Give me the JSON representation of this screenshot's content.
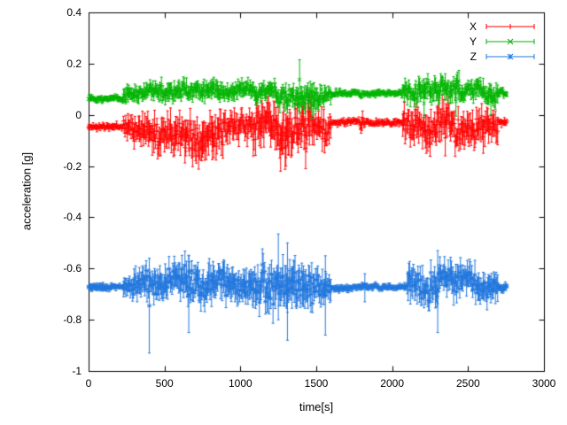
{
  "figure": {
    "background": "#ffffff",
    "border_color": "#000000"
  },
  "chart_data": {
    "type": "scatter",
    "style": "points-with-errorbars",
    "title": "",
    "xlabel": "time[s]",
    "ylabel": "acceleration [g]",
    "xlim": [
      0,
      3000
    ],
    "ylim": [
      -1,
      0.4
    ],
    "xticks": [
      "0",
      "500",
      "1000",
      "1500",
      "2000",
      "2500",
      "3000"
    ],
    "yticks": [
      "-1",
      "-0.8",
      "-0.6",
      "-0.4",
      "-0.2",
      "0",
      "0.2",
      "0.4"
    ],
    "grid": false,
    "legend_position": "top-right-inside",
    "sample_interval_s": 5,
    "t_start": 0,
    "t_end": 2760,
    "series": [
      {
        "name": "X",
        "color": "#ff0000",
        "marker": "plus",
        "seed": 11,
        "baseline": -0.05,
        "segments": [
          [
            0,
            230,
            -0.048,
            0.012
          ],
          [
            230,
            300,
            -0.05,
            0.045
          ],
          [
            300,
            420,
            -0.055,
            0.055
          ],
          [
            420,
            520,
            -0.06,
            0.065
          ],
          [
            520,
            650,
            -0.055,
            0.07
          ],
          [
            650,
            780,
            -0.065,
            0.075
          ],
          [
            780,
            900,
            -0.06,
            0.07
          ],
          [
            900,
            1080,
            -0.05,
            0.055
          ],
          [
            1080,
            1250,
            -0.065,
            0.08
          ],
          [
            1250,
            1350,
            -0.07,
            0.09
          ],
          [
            1350,
            1480,
            -0.06,
            0.085
          ],
          [
            1480,
            1600,
            -0.05,
            0.055
          ],
          [
            1600,
            1790,
            -0.03,
            0.012
          ],
          [
            1790,
            1820,
            -0.035,
            0.03
          ],
          [
            1820,
            2070,
            -0.03,
            0.012
          ],
          [
            2070,
            2200,
            -0.05,
            0.06
          ],
          [
            2200,
            2380,
            -0.055,
            0.07
          ],
          [
            2380,
            2550,
            -0.05,
            0.065
          ],
          [
            2550,
            2700,
            -0.05,
            0.06
          ],
          [
            2700,
            2760,
            -0.032,
            0.015
          ]
        ],
        "spikes": [
          [
            640,
            -0.16,
            -0.02
          ],
          [
            815,
            -0.175,
            -0.03
          ],
          [
            1185,
            -0.02,
            0.115
          ],
          [
            1265,
            -0.22,
            -0.04
          ],
          [
            1300,
            -0.2,
            -0.05
          ],
          [
            1430,
            -0.21,
            -0.05
          ],
          [
            2350,
            -0.16,
            -0.02
          ],
          [
            2600,
            -0.15,
            -0.02
          ]
        ]
      },
      {
        "name": "Y",
        "color": "#00b400",
        "marker": "cross",
        "seed": 22,
        "baseline": 0.08,
        "segments": [
          [
            0,
            230,
            0.068,
            0.012
          ],
          [
            230,
            420,
            0.08,
            0.03
          ],
          [
            420,
            650,
            0.09,
            0.035
          ],
          [
            650,
            900,
            0.085,
            0.035
          ],
          [
            900,
            1100,
            0.09,
            0.03
          ],
          [
            1100,
            1250,
            0.085,
            0.035
          ],
          [
            1250,
            1420,
            0.08,
            0.045
          ],
          [
            1420,
            1530,
            0.06,
            0.05
          ],
          [
            1530,
            1600,
            0.08,
            0.03
          ],
          [
            1600,
            2070,
            0.08,
            0.012
          ],
          [
            2070,
            2250,
            0.09,
            0.04
          ],
          [
            2250,
            2450,
            0.085,
            0.045
          ],
          [
            2450,
            2600,
            0.095,
            0.035
          ],
          [
            2600,
            2700,
            0.08,
            0.04
          ],
          [
            2700,
            2760,
            0.085,
            0.015
          ]
        ],
        "spikes": [
          [
            1390,
            0.06,
            0.215
          ],
          [
            1470,
            -0.015,
            0.09
          ],
          [
            2210,
            -0.01,
            0.1
          ],
          [
            2420,
            -0.005,
            0.11
          ],
          [
            2650,
            0.0,
            0.12
          ]
        ]
      },
      {
        "name": "Z",
        "color": "#2277dd",
        "marker": "star",
        "seed": 33,
        "baseline": -0.67,
        "segments": [
          [
            0,
            230,
            -0.675,
            0.012
          ],
          [
            230,
            300,
            -0.67,
            0.04
          ],
          [
            300,
            420,
            -0.665,
            0.055
          ],
          [
            420,
            520,
            -0.67,
            0.06
          ],
          [
            520,
            650,
            -0.66,
            0.065
          ],
          [
            650,
            780,
            -0.655,
            0.07
          ],
          [
            780,
            900,
            -0.65,
            0.07
          ],
          [
            900,
            1080,
            -0.665,
            0.06
          ],
          [
            1080,
            1250,
            -0.675,
            0.08
          ],
          [
            1250,
            1350,
            -0.68,
            0.09
          ],
          [
            1350,
            1480,
            -0.67,
            0.085
          ],
          [
            1480,
            1600,
            -0.665,
            0.055
          ],
          [
            1600,
            2100,
            -0.675,
            0.012
          ],
          [
            2100,
            2250,
            -0.655,
            0.06
          ],
          [
            2250,
            2400,
            -0.66,
            0.065
          ],
          [
            2400,
            2550,
            -0.66,
            0.06
          ],
          [
            2550,
            2700,
            -0.665,
            0.055
          ],
          [
            2700,
            2760,
            -0.675,
            0.015
          ]
        ],
        "spikes": [
          [
            400,
            -0.93,
            -0.56
          ],
          [
            660,
            -0.85,
            -0.55
          ],
          [
            1250,
            -0.8,
            -0.465
          ],
          [
            1310,
            -0.88,
            -0.5
          ],
          [
            1560,
            -0.86,
            -0.55
          ],
          [
            1820,
            -0.73,
            -0.62
          ],
          [
            2300,
            -0.85,
            -0.53
          ]
        ]
      }
    ]
  }
}
